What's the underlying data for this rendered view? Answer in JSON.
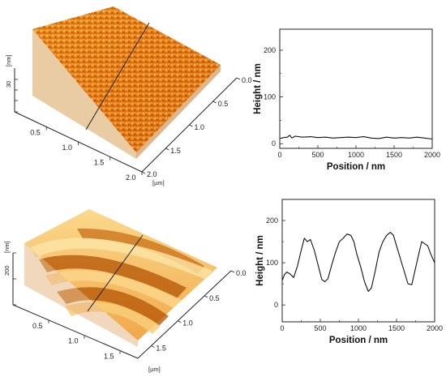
{
  "afm_top": {
    "z_unit": "[nm]",
    "z_tick": "30",
    "xy_unit": "[µm]",
    "x_ticks": [
      "0.5",
      "1.0",
      "1.5",
      "2.0"
    ],
    "y_ticks": [
      "0.0",
      "0.5",
      "1.0",
      "1.5",
      "2.0"
    ]
  },
  "afm_bottom": {
    "z_unit": "[nm]",
    "z_tick": "200",
    "xy_unit": "[µm]",
    "x_ticks": [
      "0.5",
      "1.0",
      "1.5"
    ],
    "y_ticks": [
      "0.0",
      "0.5",
      "1.0",
      "1.5"
    ]
  },
  "chart_data": [
    {
      "type": "line",
      "title": "",
      "xlabel": "Position / nm",
      "ylabel": "Height / nm",
      "xlim": [
        0,
        2000
      ],
      "ylim": [
        -10,
        245
      ],
      "xticks": [
        "0",
        "500",
        "1000",
        "1500",
        "2000"
      ],
      "yticks": [
        "0",
        "100",
        "200"
      ],
      "series": [
        {
          "x": [
            0,
            50,
            100,
            130,
            160,
            200,
            300,
            400,
            500,
            600,
            700,
            800,
            900,
            1000,
            1100,
            1200,
            1300,
            1400,
            1500,
            1600,
            1700,
            1800,
            1900,
            2000
          ],
          "values": [
            11,
            13,
            14,
            18,
            12,
            16,
            14,
            15,
            13,
            14,
            12,
            13,
            14,
            13,
            15,
            12,
            11,
            14,
            12,
            13,
            12,
            14,
            12,
            10
          ]
        }
      ]
    },
    {
      "type": "line",
      "title": "",
      "xlabel": "Position / nm",
      "ylabel": "Height / nm",
      "xlim": [
        0,
        2000
      ],
      "ylim": [
        -40,
        250
      ],
      "xticks": [
        "0",
        "500",
        "1000",
        "1500",
        "2000"
      ],
      "yticks": [
        "0",
        "100",
        "200"
      ],
      "series": [
        {
          "x": [
            0,
            30,
            60,
            100,
            150,
            200,
            250,
            290,
            330,
            370,
            420,
            470,
            520,
            560,
            600,
            650,
            700,
            750,
            800,
            850,
            900,
            940,
            980,
            1030,
            1080,
            1130,
            1170,
            1220,
            1270,
            1320,
            1370,
            1420,
            1460,
            1500,
            1550,
            1600,
            1650,
            1700,
            1740,
            1790,
            1830,
            1870,
            1910,
            1950,
            2000
          ],
          "values": [
            58,
            72,
            78,
            74,
            65,
            92,
            130,
            158,
            150,
            155,
            130,
            95,
            60,
            55,
            62,
            95,
            125,
            150,
            158,
            168,
            165,
            150,
            120,
            90,
            55,
            32,
            40,
            80,
            125,
            150,
            165,
            172,
            165,
            140,
            110,
            80,
            50,
            48,
            80,
            120,
            150,
            145,
            140,
            120,
            100
          ]
        }
      ]
    }
  ]
}
